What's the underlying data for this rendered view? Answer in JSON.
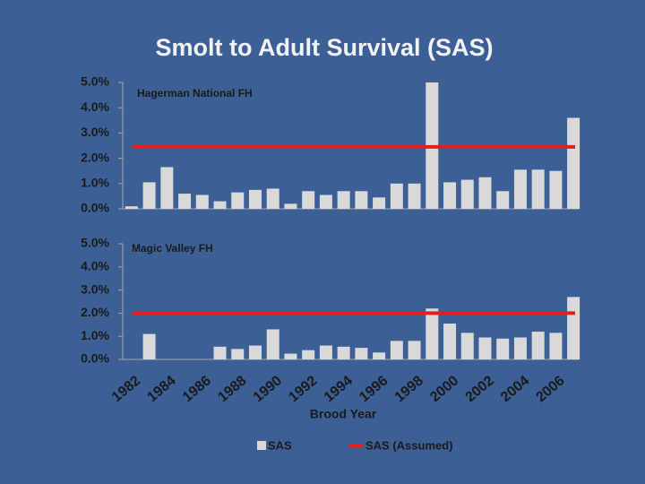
{
  "title": "Smolt to Adult Survival (SAS)",
  "legend": [
    {
      "name": "SAS",
      "color": "#d9d9d9"
    },
    {
      "name": "SAS (Assumed)",
      "color": "#e0201e"
    }
  ],
  "chart_data": [
    {
      "type": "bar",
      "label": "Hagerman National FH",
      "color": "#d9d9d9",
      "values": [
        0.1,
        1.05,
        1.65,
        0.6,
        0.55,
        0.3,
        0.65,
        0.75,
        0.8,
        0.2,
        0.7,
        0.55,
        0.7,
        0.7,
        0.45,
        1.0,
        1.0,
        5.0,
        1.05,
        1.15,
        1.25,
        0.7,
        1.55,
        1.55,
        1.5,
        3.6
      ],
      "assumed": 2.45,
      "assumed_color": "#e0201e",
      "ylim": [
        0,
        5
      ],
      "yticks": [
        {
          "value": 0,
          "label": "0.0%"
        },
        {
          "value": 1,
          "label": "1.0%"
        },
        {
          "value": 2,
          "label": "2.0%"
        },
        {
          "value": 3,
          "label": "3.0%"
        },
        {
          "value": 4,
          "label": "4.0%"
        },
        {
          "value": 5,
          "label": "5.0%"
        }
      ]
    },
    {
      "type": "bar",
      "label": "Magic Valley FH",
      "color": "#d9d9d9",
      "xlabel": "Brood Year",
      "categories": [
        "1982",
        null,
        "1984",
        null,
        "1986",
        null,
        "1988",
        null,
        "1990",
        null,
        "1992",
        null,
        "1994",
        null,
        "1996",
        null,
        "1998",
        null,
        "2000",
        null,
        "2002",
        null,
        "2004",
        null,
        "2006",
        null
      ],
      "values": [
        null,
        1.1,
        null,
        null,
        null,
        0.55,
        0.45,
        0.6,
        1.3,
        0.25,
        0.4,
        0.6,
        0.55,
        0.5,
        0.3,
        0.8,
        0.8,
        2.2,
        1.55,
        1.15,
        0.95,
        0.9,
        0.95,
        1.2,
        1.15,
        2.7
      ],
      "assumed": 2.0,
      "assumed_color": "#e0201e",
      "ylim": [
        0,
        5
      ],
      "yticks": [
        {
          "value": 0,
          "label": "0.0%"
        },
        {
          "value": 1,
          "label": "1.0%"
        },
        {
          "value": 2,
          "label": "2.0%"
        },
        {
          "value": 3,
          "label": "3.0%"
        },
        {
          "value": 4,
          "label": "4.0%"
        },
        {
          "value": 5,
          "label": "5.0%"
        }
      ]
    }
  ]
}
